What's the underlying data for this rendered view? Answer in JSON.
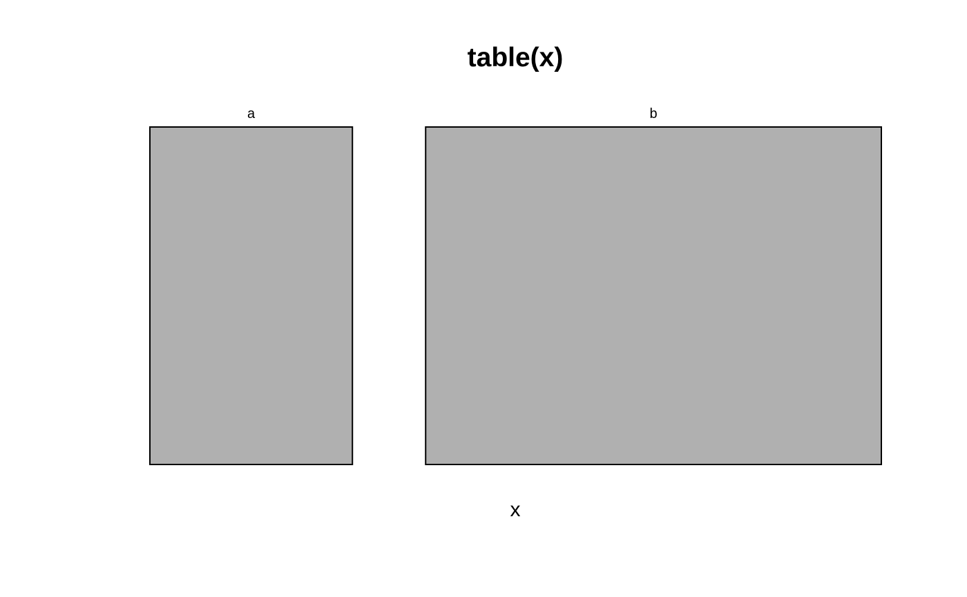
{
  "chart_data": {
    "type": "mosaic",
    "title": "table(x)",
    "xlabel": "x",
    "ylabel": "",
    "categories": [
      "a",
      "b"
    ],
    "values": [
      1,
      2.25
    ],
    "grid": false,
    "legend": "none",
    "fill_color": "#b0b0b0",
    "border_color": "#000000"
  }
}
